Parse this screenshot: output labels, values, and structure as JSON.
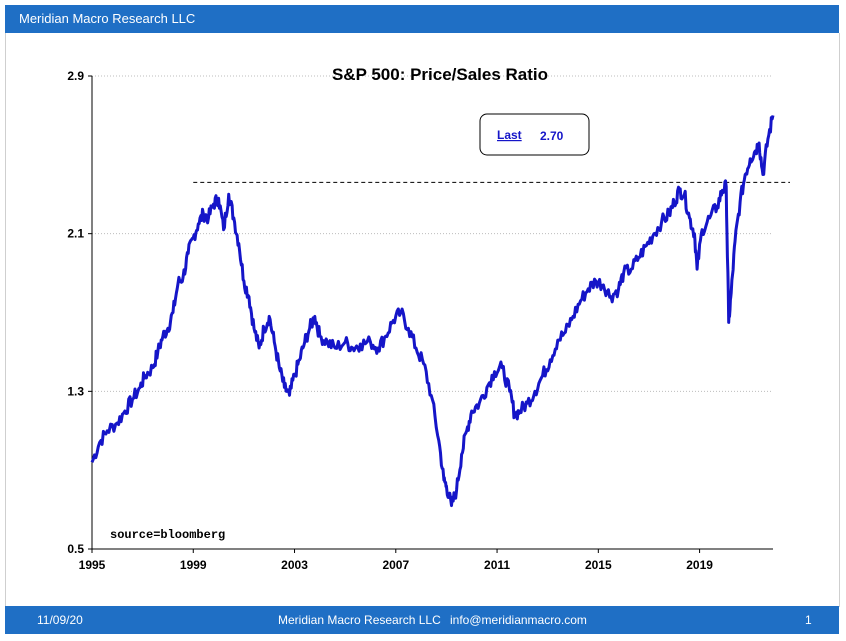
{
  "header": {
    "title": "Meridian Macro Research LLC"
  },
  "footer": {
    "date": "11/09/20",
    "firm": "Meridian Macro Research LLC",
    "email": "info@meridianmacro.com",
    "page": "1"
  },
  "colors": {
    "bar": "#1f6fc5",
    "line": "#1515c8",
    "grid": "#bdbdbd"
  },
  "chart_data": {
    "type": "line",
    "title": "S&P 500: Price/Sales Ratio",
    "source_note": "source=bloomberg",
    "last_label": "Last",
    "last_value": "2.70",
    "reference_line": {
      "value": 2.36,
      "style": "dashed",
      "from_x": 1999.0
    },
    "xlim": [
      1995,
      2021.9
    ],
    "ylim": [
      0.5,
      2.9
    ],
    "x_ticks": [
      1995,
      1999,
      2003,
      2007,
      2011,
      2015,
      2019
    ],
    "y_ticks": [
      0.5,
      1.3,
      2.1,
      2.9
    ],
    "y_tick_labels": [
      "0.5",
      "1.3",
      "2.1",
      "2.9"
    ],
    "grid": "horizontal dotted",
    "series": [
      {
        "x": [
          1995.0,
          1995.3,
          1995.6,
          1996.0,
          1996.3,
          1996.6,
          1996.9,
          1997.1,
          1997.4,
          1997.6,
          1997.8,
          1998.0,
          1998.2,
          1998.4,
          1998.6,
          1998.8,
          1999.0,
          1999.2,
          1999.4,
          1999.6,
          1999.8,
          2000.0,
          2000.2,
          2000.4,
          2000.6,
          2000.8,
          2001.0,
          2001.2,
          2001.4,
          2001.6,
          2001.8,
          2002.0,
          2002.2,
          2002.4,
          2002.6,
          2002.8,
          2003.0,
          2003.2,
          2003.4,
          2003.6,
          2003.8,
          2004.0,
          2004.3,
          2004.6,
          2005.0,
          2005.3,
          2005.6,
          2006.0,
          2006.3,
          2006.6,
          2006.9,
          2007.2,
          2007.5,
          2007.8,
          2008.1,
          2008.4,
          2008.7,
          2008.9,
          2009.0,
          2009.2,
          2009.4,
          2009.6,
          2009.8,
          2010.0,
          2010.3,
          2010.6,
          2010.9,
          2011.2,
          2011.5,
          2011.7,
          2011.9,
          2012.2,
          2012.5,
          2012.8,
          2013.1,
          2013.4,
          2013.7,
          2014.0,
          2014.3,
          2014.6,
          2014.9,
          2015.2,
          2015.5,
          2015.8,
          2016.0,
          2016.3,
          2016.6,
          2016.9,
          2017.2,
          2017.5,
          2017.8,
          2018.0,
          2018.2,
          2018.4,
          2018.6,
          2018.8,
          2018.9,
          2019.1,
          2019.4,
          2019.7,
          2019.9,
          2020.05,
          2020.15,
          2020.25,
          2020.4,
          2020.6,
          2020.8,
          2021.0,
          2021.2,
          2021.35,
          2021.5,
          2021.7,
          2021.9
        ],
        "y": [
          0.94,
          1.04,
          1.1,
          1.14,
          1.2,
          1.26,
          1.32,
          1.38,
          1.42,
          1.5,
          1.58,
          1.62,
          1.7,
          1.85,
          1.88,
          2.0,
          2.08,
          2.15,
          2.2,
          2.18,
          2.25,
          2.28,
          2.12,
          2.3,
          2.18,
          2.05,
          1.86,
          1.78,
          1.62,
          1.52,
          1.62,
          1.68,
          1.55,
          1.42,
          1.32,
          1.28,
          1.38,
          1.46,
          1.55,
          1.62,
          1.68,
          1.58,
          1.55,
          1.52,
          1.55,
          1.52,
          1.54,
          1.55,
          1.52,
          1.58,
          1.66,
          1.7,
          1.62,
          1.52,
          1.44,
          1.28,
          1.05,
          0.85,
          0.82,
          0.72,
          0.8,
          0.98,
          1.1,
          1.2,
          1.24,
          1.32,
          1.4,
          1.42,
          1.3,
          1.18,
          1.2,
          1.24,
          1.3,
          1.38,
          1.46,
          1.56,
          1.6,
          1.68,
          1.76,
          1.82,
          1.86,
          1.84,
          1.78,
          1.82,
          1.9,
          1.92,
          1.98,
          2.04,
          2.1,
          2.16,
          2.2,
          2.26,
          2.32,
          2.3,
          2.18,
          2.1,
          1.92,
          2.12,
          2.18,
          2.24,
          2.32,
          2.34,
          1.65,
          1.8,
          2.06,
          2.26,
          2.4,
          2.48,
          2.52,
          2.56,
          2.4,
          2.58,
          2.7
        ]
      }
    ]
  }
}
